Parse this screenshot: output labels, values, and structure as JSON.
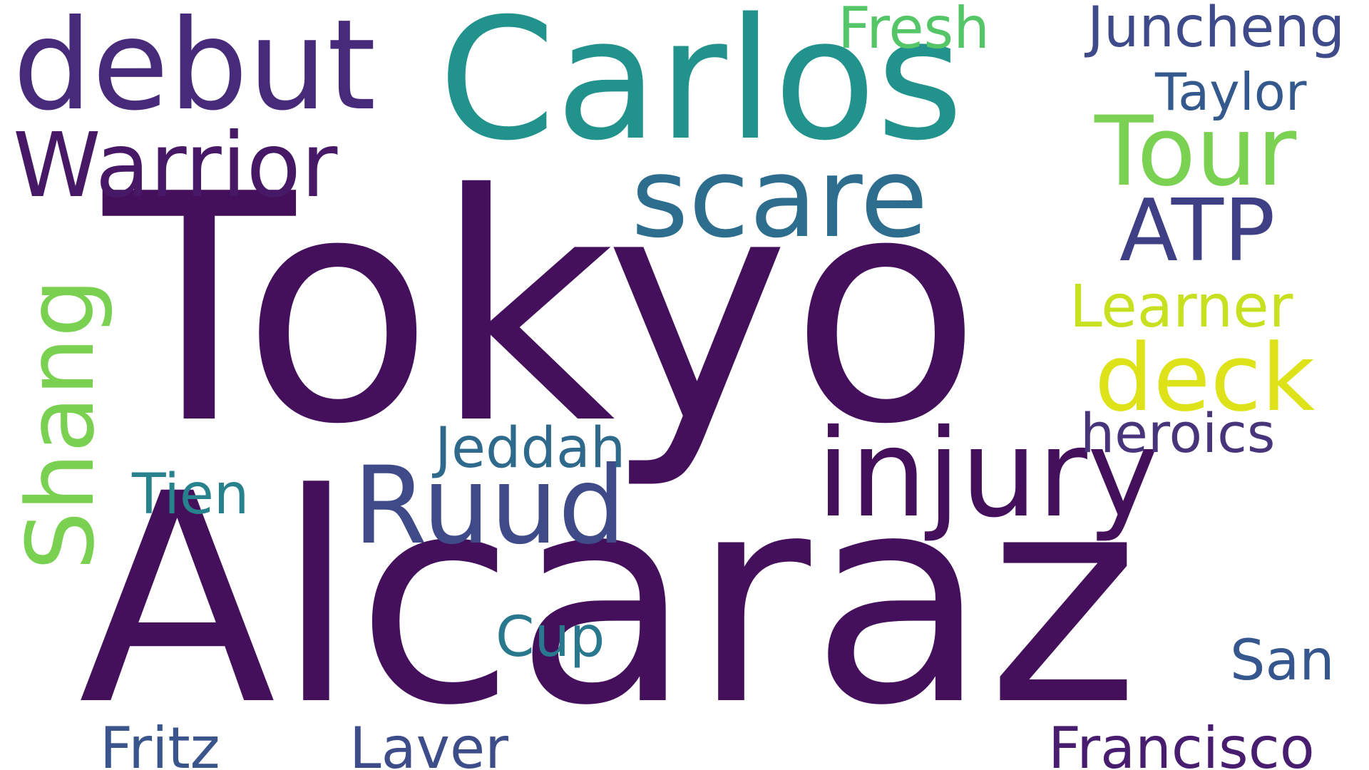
{
  "words": {
    "tokyo": {
      "text": "Tokyo",
      "color": "#440f5b"
    },
    "alcaraz": {
      "text": "Alcaraz",
      "color": "#440f5b"
    },
    "carlos": {
      "text": "Carlos",
      "color": "#21928c"
    },
    "debut": {
      "text": "debut",
      "color": "#472a7a"
    },
    "scare": {
      "text": "scare",
      "color": "#2d6d8e"
    },
    "injury": {
      "text": "injury",
      "color": "#440f5b"
    },
    "ruud": {
      "text": "Ruud",
      "color": "#3f4a89"
    },
    "warrior": {
      "text": "Warrior",
      "color": "#461866"
    },
    "tour": {
      "text": "Tour",
      "color": "#7bd151"
    },
    "atp": {
      "text": "ATP",
      "color": "#3f3f86"
    },
    "deck": {
      "text": "deck",
      "color": "#dde318"
    },
    "learner": {
      "text": "Learner",
      "color": "#c7e020"
    },
    "heroics": {
      "text": "heroics",
      "color": "#48347b"
    },
    "fresh": {
      "text": "Fresh",
      "color": "#55c667"
    },
    "juncheng": {
      "text": "Juncheng",
      "color": "#3e4a89"
    },
    "taylor": {
      "text": "Taylor",
      "color": "#34598c"
    },
    "jeddah": {
      "text": "Jeddah",
      "color": "#2f6a8d"
    },
    "tien": {
      "text": "Tien",
      "color": "#28828e"
    },
    "cup": {
      "text": "Cup",
      "color": "#2a788e"
    },
    "san": {
      "text": "San",
      "color": "#36578d"
    },
    "francisco": {
      "text": "Francisco",
      "color": "#481c6e"
    },
    "fritz": {
      "text": "Fritz",
      "color": "#3a548c"
    },
    "laver": {
      "text": "Laver",
      "color": "#3d4d8a"
    },
    "shang": {
      "text": "Shang",
      "color": "#7ad151"
    }
  }
}
